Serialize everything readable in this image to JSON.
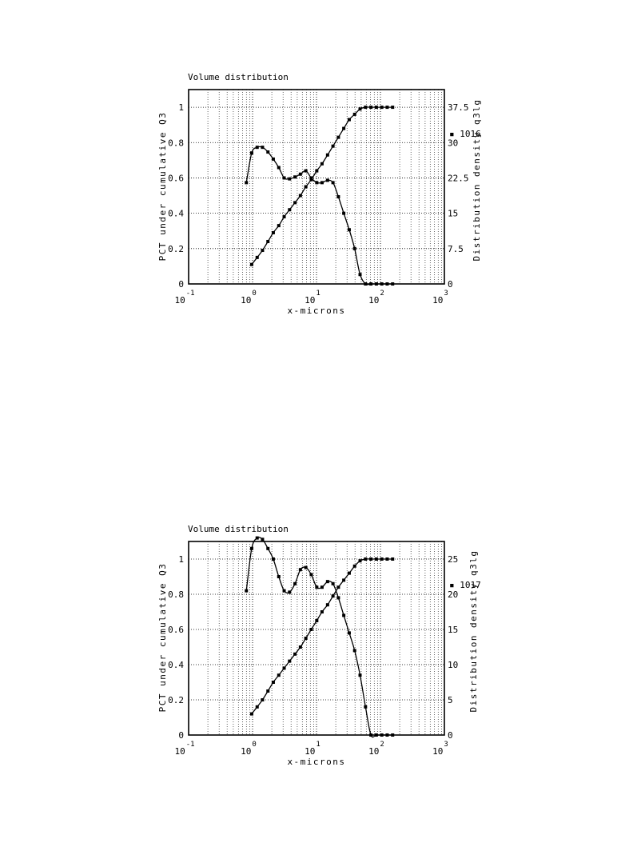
{
  "chart_data": [
    {
      "type": "line",
      "title": "Volume distribution",
      "xlabel": "x-microns",
      "ylabel_left": "PCT under cumulative Q3",
      "ylabel_right": "Distribution density q3lg",
      "x_scale": "log",
      "xlim": [
        0.1,
        1000
      ],
      "x_ticks": [
        "10^-1",
        "10^0",
        "10^1",
        "10^2",
        "10^3"
      ],
      "ylim_left": [
        0,
        1.1
      ],
      "y_ticks_left": [
        "0",
        "0.2",
        "0.4",
        "0.6",
        "0.8",
        "1"
      ],
      "ylim_right": [
        0,
        41.25
      ],
      "y_ticks_right": [
        "0",
        "7.5",
        "15",
        "22.5",
        "30",
        "37.5"
      ],
      "annotation": "▪ 1016",
      "grid": true,
      "series": [
        {
          "axis": "left",
          "x": [
            0.97,
            1.18,
            1.43,
            1.74,
            2.11,
            2.57,
            3.12,
            3.79,
            4.61,
            5.6,
            6.81,
            8.28,
            10.1,
            12.2,
            14.9,
            18.1,
            22,
            26.7,
            32.5,
            39.5,
            48,
            58.4,
            71,
            86.3,
            104.9,
            127.5,
            155
          ],
          "y": [
            0.11,
            0.15,
            0.19,
            0.24,
            0.29,
            0.33,
            0.38,
            0.42,
            0.46,
            0.5,
            0.55,
            0.59,
            0.64,
            0.68,
            0.73,
            0.78,
            0.83,
            0.88,
            0.93,
            0.96,
            0.99,
            1.0,
            1.0,
            1.0,
            1.0,
            1.0,
            1.0
          ]
        },
        {
          "axis": "right",
          "x": [
            0.8,
            0.97,
            1.18,
            1.43,
            1.74,
            2.11,
            2.57,
            3.12,
            3.79,
            4.61,
            5.6,
            6.81,
            8.28,
            10.1,
            12.2,
            14.9,
            18.1,
            22,
            26.7,
            32.5,
            39.5,
            48,
            58.4,
            71,
            86.3,
            104.9,
            127.5,
            155
          ],
          "y": [
            21.5,
            27.8,
            29,
            29,
            28,
            26.5,
            24.7,
            22.5,
            22.3,
            22.7,
            23.3,
            24,
            22.5,
            21.5,
            21.5,
            22,
            21.5,
            18.5,
            15,
            11.5,
            7.5,
            2,
            0,
            0,
            0,
            0,
            0,
            0
          ]
        }
      ]
    },
    {
      "type": "line",
      "title": "Volume distribution",
      "xlabel": "x-microns",
      "ylabel_left": "PCT under cumulative Q3",
      "ylabel_right": "Distribution density q3lg",
      "x_scale": "log",
      "xlim": [
        0.1,
        1000
      ],
      "x_ticks": [
        "10^-1",
        "10^0",
        "10^1",
        "10^2",
        "10^3"
      ],
      "ylim_left": [
        0,
        1.1
      ],
      "y_ticks_left": [
        "0",
        "0.2",
        "0.4",
        "0.6",
        "0.8",
        "1"
      ],
      "ylim_right": [
        0,
        27.5
      ],
      "y_ticks_right": [
        "0",
        "5",
        "10",
        "15",
        "20",
        "25"
      ],
      "annotation": "▪ 1017",
      "grid": true,
      "series": [
        {
          "axis": "left",
          "x": [
            0.97,
            1.18,
            1.43,
            1.74,
            2.11,
            2.57,
            3.12,
            3.79,
            4.61,
            5.6,
            6.81,
            8.28,
            10.1,
            12.2,
            14.9,
            18.1,
            22,
            26.7,
            32.5,
            39.5,
            48,
            58.4,
            71,
            86.3,
            104.9,
            127.5,
            155
          ],
          "y": [
            0.12,
            0.16,
            0.2,
            0.25,
            0.3,
            0.34,
            0.38,
            0.42,
            0.46,
            0.5,
            0.55,
            0.6,
            0.65,
            0.7,
            0.74,
            0.79,
            0.84,
            0.88,
            0.92,
            0.96,
            0.99,
            1.0,
            1.0,
            1.0,
            1.0,
            1.0,
            1.0
          ]
        },
        {
          "axis": "right",
          "x": [
            0.8,
            0.97,
            1.18,
            1.43,
            1.74,
            2.11,
            2.57,
            3.12,
            3.79,
            4.61,
            5.6,
            6.81,
            8.28,
            10.1,
            12.2,
            14.9,
            18.1,
            22,
            26.7,
            32.5,
            39.5,
            48,
            58.4,
            71,
            86.3,
            104.9,
            127.5,
            155
          ],
          "y": [
            20.5,
            26.5,
            28,
            27.8,
            26.5,
            25,
            22.5,
            20.5,
            20.3,
            21.5,
            23.5,
            23.8,
            22.8,
            21,
            21,
            21.8,
            21.5,
            19.5,
            17,
            14.5,
            12,
            8.5,
            4,
            0,
            0,
            0,
            0,
            0
          ]
        }
      ]
    }
  ]
}
